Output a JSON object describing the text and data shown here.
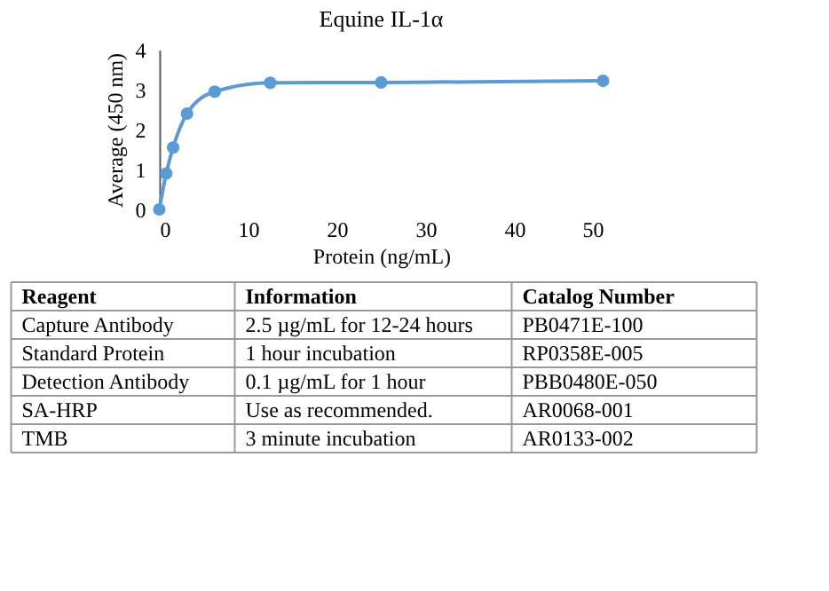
{
  "chart_data": {
    "type": "line",
    "title": "Equine IL-1α",
    "xlabel": "Protein (ng/mL)",
    "ylabel": "Average (450 nm)",
    "x": [
      0,
      0.78,
      1.56,
      3.125,
      6.25,
      12.5,
      25,
      50
    ],
    "series": [
      {
        "color": "#5b9bd5",
        "values": [
          0,
          0.9,
          1.55,
          2.4,
          2.95,
          3.17,
          3.18,
          3.22
        ]
      }
    ],
    "xlim": [
      0,
      50
    ],
    "xticks": [
      0,
      10,
      20,
      30,
      40,
      50
    ],
    "ylim": [
      0,
      4
    ],
    "yticks": [
      0,
      1,
      2,
      3,
      4
    ],
    "marker": "circle",
    "line_style": "solid",
    "grid": false,
    "legend": false,
    "annotations": [
      "Reagent",
      "Information",
      "Catalog Number",
      "Capture Antibody",
      "2.5 µg/mL for 12-24 hours",
      "PB0471E-100",
      "Standard Protein",
      "1 hour incubation",
      "RP0358E-005",
      "Detection Antibody",
      "0.1 µg/mL for 1 hour",
      "PBB0480E-050",
      "SA-HRP",
      "Use as recommended.",
      "AR0068-001",
      "TMB",
      "3 minute incubation",
      "AR0133-002"
    ]
  }
}
